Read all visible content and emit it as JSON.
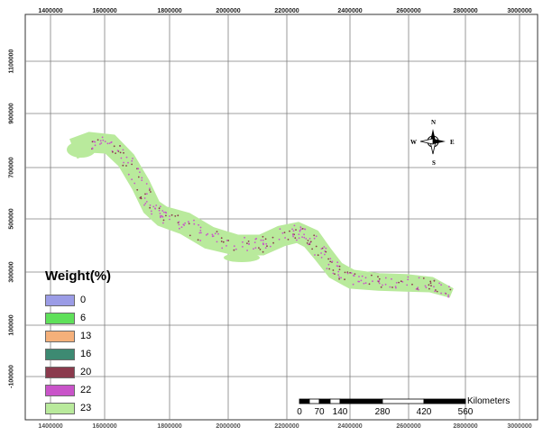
{
  "map": {
    "x_ticks": [
      "1400000",
      "1600000",
      "1800000",
      "2000000",
      "2200000",
      "2400000",
      "2600000",
      "2800000",
      "3000000"
    ],
    "y_ticks": [
      "1100000",
      "900000",
      "700000",
      "500000",
      "300000",
      "100000",
      "-100000"
    ]
  },
  "legend": {
    "title": "Weight(%)",
    "items": [
      {
        "label": "0",
        "color": "#9b9ce6"
      },
      {
        "label": "6",
        "color": "#5fe05a"
      },
      {
        "label": "13",
        "color": "#f5b07a"
      },
      {
        "label": "16",
        "color": "#3d8a72"
      },
      {
        "label": "20",
        "color": "#8b3a4d"
      },
      {
        "label": "22",
        "color": "#c954c9"
      },
      {
        "label": "23",
        "color": "#b9ea9c"
      }
    ]
  },
  "scale_bar": {
    "unit": "Kilometers",
    "ticks": [
      "0",
      "70",
      "140",
      "280",
      "420",
      "560"
    ]
  },
  "north_arrow": {
    "n": "N",
    "s": "S",
    "e": "E",
    "w": "W"
  },
  "colors": {
    "grid": "#7f7f7f",
    "base_zone": "#b9ea9c",
    "speckle_primary": "#c954c9",
    "speckle_secondary": "#8b3a4d"
  }
}
